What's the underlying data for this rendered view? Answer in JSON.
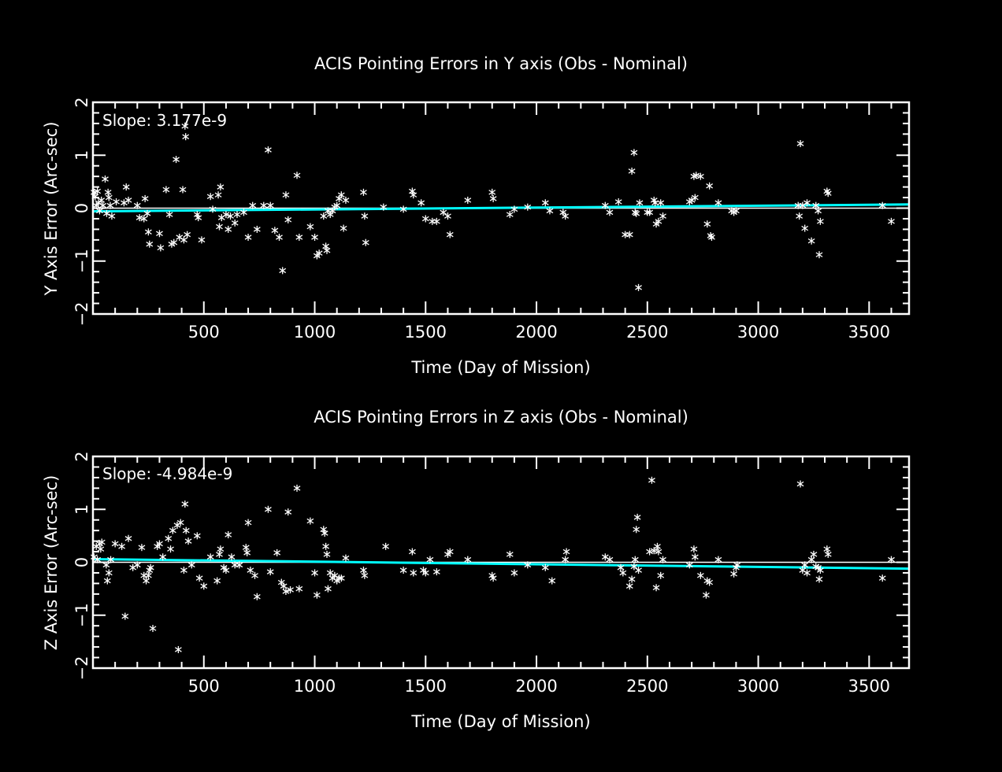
{
  "colors": {
    "background": "#000000",
    "foreground": "#ffffff",
    "fit": "#00ffff"
  },
  "chart_data": [
    {
      "type": "scatter",
      "title": "ACIS Pointing Errors in Y axis (Obs - Nominal)",
      "xlabel": "Time (Day of Mission)",
      "ylabel": "Y Axis Error (Arc-sec)",
      "slope_label": "Slope: 3.177e-9",
      "xlim": [
        0,
        3680
      ],
      "ylim": [
        -2,
        2
      ],
      "xticks": [
        500,
        1000,
        1500,
        2000,
        2500,
        3000,
        3500
      ],
      "yticks": [
        -2,
        -1,
        0,
        1,
        2
      ],
      "zero_line": true,
      "fit": {
        "x": [
          0,
          3680
        ],
        "y": [
          -0.06,
          0.07
        ]
      },
      "points": [
        [
          5,
          0.3
        ],
        [
          10,
          0.22
        ],
        [
          15,
          0.05
        ],
        [
          20,
          0.32
        ],
        [
          25,
          0.1
        ],
        [
          30,
          -0.05
        ],
        [
          38,
          0.15
        ],
        [
          45,
          0.05
        ],
        [
          55,
          0.55
        ],
        [
          62,
          -0.1
        ],
        [
          68,
          0.3
        ],
        [
          72,
          0.2
        ],
        [
          78,
          0.05
        ],
        [
          85,
          -0.15
        ],
        [
          105,
          0.12
        ],
        [
          140,
          0.1
        ],
        [
          150,
          0.4
        ],
        [
          160,
          0.15
        ],
        [
          200,
          0.05
        ],
        [
          210,
          -0.18
        ],
        [
          230,
          -0.2
        ],
        [
          235,
          0.18
        ],
        [
          245,
          -0.1
        ],
        [
          250,
          -0.45
        ],
        [
          255,
          -0.68
        ],
        [
          300,
          -0.48
        ],
        [
          305,
          -0.75
        ],
        [
          330,
          0.35
        ],
        [
          345,
          -0.12
        ],
        [
          355,
          -0.68
        ],
        [
          365,
          -0.65
        ],
        [
          375,
          0.92
        ],
        [
          390,
          -0.55
        ],
        [
          405,
          0.35
        ],
        [
          410,
          -0.6
        ],
        [
          415,
          1.55
        ],
        [
          418,
          1.35
        ],
        [
          425,
          -0.5
        ],
        [
          470,
          -0.12
        ],
        [
          475,
          -0.18
        ],
        [
          490,
          -0.6
        ],
        [
          530,
          0.22
        ],
        [
          540,
          -0.02
        ],
        [
          565,
          0.25
        ],
        [
          570,
          -0.35
        ],
        [
          575,
          0.4
        ],
        [
          580,
          -0.18
        ],
        [
          600,
          -0.12
        ],
        [
          610,
          -0.4
        ],
        [
          620,
          -0.15
        ],
        [
          640,
          -0.28
        ],
        [
          650,
          -0.12
        ],
        [
          680,
          -0.08
        ],
        [
          700,
          -0.55
        ],
        [
          720,
          0.05
        ],
        [
          740,
          -0.4
        ],
        [
          770,
          0.05
        ],
        [
          790,
          1.1
        ],
        [
          800,
          0.05
        ],
        [
          820,
          -0.42
        ],
        [
          840,
          -0.55
        ],
        [
          855,
          -1.18
        ],
        [
          870,
          0.25
        ],
        [
          880,
          -0.22
        ],
        [
          920,
          0.62
        ],
        [
          930,
          -0.55
        ],
        [
          980,
          -0.35
        ],
        [
          1000,
          -0.55
        ],
        [
          1010,
          -0.9
        ],
        [
          1020,
          -0.85
        ],
        [
          1040,
          -0.15
        ],
        [
          1050,
          -0.72
        ],
        [
          1055,
          -0.8
        ],
        [
          1060,
          -0.05
        ],
        [
          1070,
          -0.12
        ],
        [
          1080,
          -0.05
        ],
        [
          1090,
          0.02
        ],
        [
          1100,
          0.05
        ],
        [
          1110,
          0.18
        ],
        [
          1120,
          0.25
        ],
        [
          1130,
          -0.38
        ],
        [
          1140,
          0.15
        ],
        [
          1220,
          0.3
        ],
        [
          1225,
          -0.15
        ],
        [
          1230,
          -0.65
        ],
        [
          1310,
          0.02
        ],
        [
          1400,
          -0.02
        ],
        [
          1440,
          0.32
        ],
        [
          1445,
          0.25
        ],
        [
          1480,
          0.1
        ],
        [
          1500,
          -0.2
        ],
        [
          1530,
          -0.25
        ],
        [
          1550,
          -0.25
        ],
        [
          1580,
          -0.08
        ],
        [
          1600,
          -0.15
        ],
        [
          1610,
          -0.5
        ],
        [
          1690,
          0.15
        ],
        [
          1800,
          0.3
        ],
        [
          1805,
          0.18
        ],
        [
          1880,
          -0.12
        ],
        [
          1900,
          -0.02
        ],
        [
          1960,
          0.02
        ],
        [
          2040,
          0.1
        ],
        [
          2060,
          -0.05
        ],
        [
          2120,
          -0.08
        ],
        [
          2130,
          -0.15
        ],
        [
          2310,
          0.05
        ],
        [
          2330,
          -0.08
        ],
        [
          2370,
          0.12
        ],
        [
          2400,
          -0.5
        ],
        [
          2420,
          -0.5
        ],
        [
          2430,
          0.7
        ],
        [
          2440,
          1.05
        ],
        [
          2445,
          -0.08
        ],
        [
          2450,
          -0.1
        ],
        [
          2460,
          -1.5
        ],
        [
          2465,
          0.1
        ],
        [
          2500,
          -0.08
        ],
        [
          2510,
          -0.08
        ],
        [
          2530,
          0.15
        ],
        [
          2535,
          0.1
        ],
        [
          2540,
          -0.3
        ],
        [
          2550,
          -0.25
        ],
        [
          2560,
          0.1
        ],
        [
          2570,
          -0.15
        ],
        [
          2690,
          0.12
        ],
        [
          2700,
          0.15
        ],
        [
          2710,
          0.6
        ],
        [
          2715,
          0.2
        ],
        [
          2720,
          0.62
        ],
        [
          2740,
          0.6
        ],
        [
          2770,
          -0.3
        ],
        [
          2780,
          0.42
        ],
        [
          2785,
          -0.52
        ],
        [
          2790,
          -0.55
        ],
        [
          2820,
          0.1
        ],
        [
          2880,
          -0.05
        ],
        [
          2890,
          -0.08
        ],
        [
          2900,
          -0.05
        ],
        [
          3180,
          0.05
        ],
        [
          3185,
          -0.15
        ],
        [
          3190,
          1.22
        ],
        [
          3200,
          0.05
        ],
        [
          3210,
          -0.38
        ],
        [
          3220,
          0.1
        ],
        [
          3240,
          -0.62
        ],
        [
          3260,
          0.05
        ],
        [
          3270,
          -0.05
        ],
        [
          3275,
          -0.88
        ],
        [
          3280,
          -0.25
        ],
        [
          3310,
          0.32
        ],
        [
          3315,
          0.28
        ],
        [
          3560,
          0.05
        ],
        [
          3600,
          -0.25
        ]
      ]
    },
    {
      "type": "scatter",
      "title": "ACIS Pointing Errors in  Z axis (Obs - Nominal)",
      "xlabel": "Time (Day of Mission)",
      "ylabel": "Z Axis Error (Arc-sec)",
      "slope_label": "Slope: -4.984e-9",
      "xlim": [
        0,
        3680
      ],
      "ylim": [
        -2,
        2
      ],
      "xticks": [
        500,
        1000,
        1500,
        2000,
        2500,
        3000,
        3500
      ],
      "yticks": [
        -2,
        -1,
        0,
        1,
        2
      ],
      "zero_line": true,
      "fit": {
        "x": [
          0,
          3680
        ],
        "y": [
          0.06,
          -0.12
        ]
      },
      "points": [
        [
          5,
          0.1
        ],
        [
          15,
          0.3
        ],
        [
          20,
          0.05
        ],
        [
          30,
          0.35
        ],
        [
          35,
          0.25
        ],
        [
          40,
          0.38
        ],
        [
          60,
          -0.05
        ],
        [
          65,
          -0.35
        ],
        [
          72,
          -0.2
        ],
        [
          80,
          0.05
        ],
        [
          100,
          0.35
        ],
        [
          130,
          0.3
        ],
        [
          145,
          -1.02
        ],
        [
          160,
          0.45
        ],
        [
          180,
          -0.1
        ],
        [
          200,
          -0.05
        ],
        [
          220,
          0.28
        ],
        [
          230,
          -0.25
        ],
        [
          240,
          -0.35
        ],
        [
          250,
          -0.25
        ],
        [
          255,
          -0.15
        ],
        [
          260,
          -0.1
        ],
        [
          270,
          -1.25
        ],
        [
          290,
          0.3
        ],
        [
          300,
          0.35
        ],
        [
          315,
          0.1
        ],
        [
          340,
          0.45
        ],
        [
          350,
          0.25
        ],
        [
          360,
          0.6
        ],
        [
          380,
          0.7
        ],
        [
          385,
          -1.65
        ],
        [
          395,
          0.75
        ],
        [
          410,
          -0.15
        ],
        [
          415,
          1.1
        ],
        [
          420,
          0.6
        ],
        [
          430,
          0.4
        ],
        [
          445,
          -0.05
        ],
        [
          470,
          0.5
        ],
        [
          480,
          -0.3
        ],
        [
          500,
          -0.45
        ],
        [
          530,
          0.1
        ],
        [
          560,
          -0.35
        ],
        [
          570,
          0.15
        ],
        [
          575,
          0.25
        ],
        [
          590,
          -0.1
        ],
        [
          600,
          -0.15
        ],
        [
          610,
          0.52
        ],
        [
          625,
          0.1
        ],
        [
          640,
          -0.05
        ],
        [
          660,
          -0.05
        ],
        [
          690,
          0.28
        ],
        [
          695,
          0.18
        ],
        [
          700,
          0.75
        ],
        [
          710,
          -0.15
        ],
        [
          730,
          -0.25
        ],
        [
          740,
          -0.65
        ],
        [
          790,
          1.0
        ],
        [
          800,
          -0.18
        ],
        [
          830,
          0.18
        ],
        [
          850,
          -0.38
        ],
        [
          860,
          -0.45
        ],
        [
          870,
          -0.55
        ],
        [
          880,
          0.95
        ],
        [
          890,
          -0.52
        ],
        [
          920,
          1.4
        ],
        [
          930,
          -0.5
        ],
        [
          980,
          0.78
        ],
        [
          1000,
          -0.2
        ],
        [
          1010,
          -0.62
        ],
        [
          1040,
          0.62
        ],
        [
          1045,
          0.55
        ],
        [
          1050,
          0.3
        ],
        [
          1055,
          0.15
        ],
        [
          1060,
          -0.5
        ],
        [
          1070,
          -0.2
        ],
        [
          1080,
          -0.3
        ],
        [
          1090,
          -0.25
        ],
        [
          1100,
          -0.35
        ],
        [
          1110,
          -0.3
        ],
        [
          1120,
          -0.3
        ],
        [
          1140,
          0.08
        ],
        [
          1220,
          -0.15
        ],
        [
          1225,
          -0.25
        ],
        [
          1320,
          0.3
        ],
        [
          1400,
          -0.15
        ],
        [
          1440,
          0.2
        ],
        [
          1445,
          -0.2
        ],
        [
          1490,
          -0.15
        ],
        [
          1500,
          -0.2
        ],
        [
          1520,
          0.05
        ],
        [
          1550,
          -0.18
        ],
        [
          1600,
          0.15
        ],
        [
          1610,
          0.2
        ],
        [
          1690,
          0.05
        ],
        [
          1800,
          -0.25
        ],
        [
          1805,
          -0.3
        ],
        [
          1880,
          0.15
        ],
        [
          1900,
          -0.2
        ],
        [
          1960,
          -0.05
        ],
        [
          2040,
          -0.1
        ],
        [
          2070,
          -0.35
        ],
        [
          2130,
          0.05
        ],
        [
          2135,
          0.2
        ],
        [
          2310,
          0.1
        ],
        [
          2330,
          0.05
        ],
        [
          2380,
          -0.1
        ],
        [
          2390,
          -0.2
        ],
        [
          2420,
          -0.45
        ],
        [
          2430,
          -0.32
        ],
        [
          2440,
          -0.08
        ],
        [
          2445,
          0.05
        ],
        [
          2450,
          0.62
        ],
        [
          2455,
          0.85
        ],
        [
          2460,
          -0.15
        ],
        [
          2510,
          0.2
        ],
        [
          2520,
          1.55
        ],
        [
          2530,
          0.22
        ],
        [
          2540,
          -0.48
        ],
        [
          2545,
          0.3
        ],
        [
          2550,
          0.2
        ],
        [
          2560,
          -0.25
        ],
        [
          2570,
          0.05
        ],
        [
          2690,
          -0.05
        ],
        [
          2710,
          0.25
        ],
        [
          2715,
          0.1
        ],
        [
          2740,
          -0.25
        ],
        [
          2765,
          -0.62
        ],
        [
          2770,
          -0.35
        ],
        [
          2780,
          -0.38
        ],
        [
          2820,
          0.05
        ],
        [
          2890,
          -0.22
        ],
        [
          2900,
          -0.1
        ],
        [
          2905,
          -0.05
        ],
        [
          3190,
          1.48
        ],
        [
          3200,
          -0.15
        ],
        [
          3210,
          -0.05
        ],
        [
          3220,
          -0.2
        ],
        [
          3240,
          0.05
        ],
        [
          3250,
          0.15
        ],
        [
          3260,
          -0.08
        ],
        [
          3270,
          -0.1
        ],
        [
          3275,
          -0.32
        ],
        [
          3280,
          -0.15
        ],
        [
          3310,
          0.25
        ],
        [
          3315,
          0.15
        ],
        [
          3560,
          -0.3
        ],
        [
          3600,
          0.05
        ]
      ]
    }
  ]
}
